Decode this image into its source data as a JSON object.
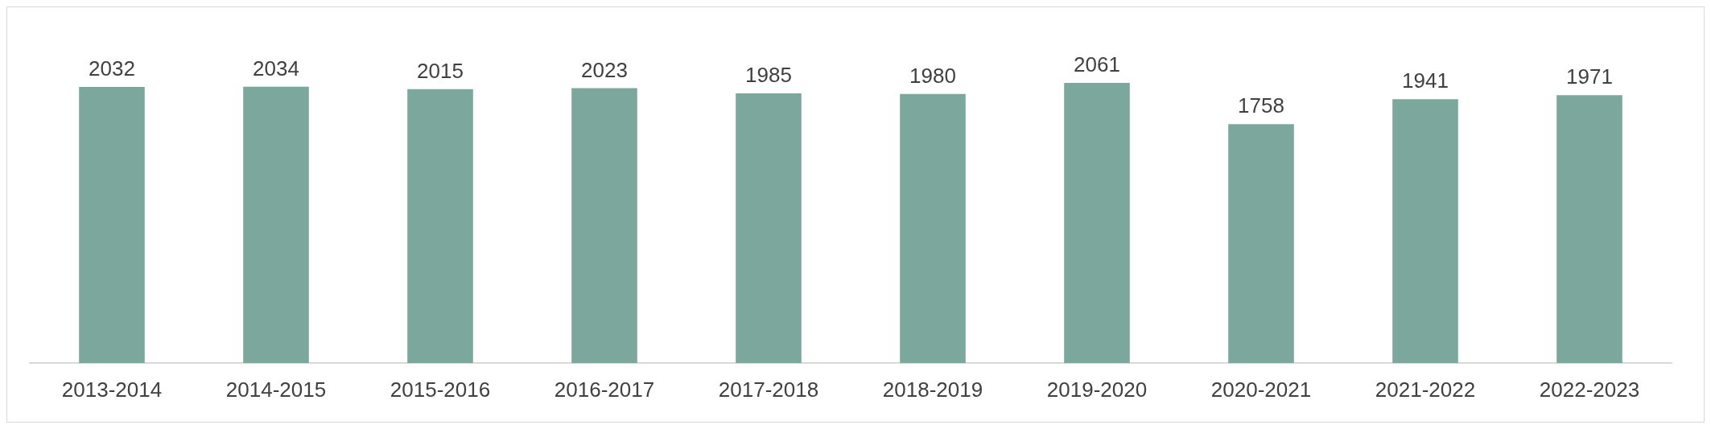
{
  "chart_data": {
    "type": "bar",
    "categories": [
      "2013-2014",
      "2014-2015",
      "2015-2016",
      "2016-2017",
      "2017-2018",
      "2018-2019",
      "2019-2020",
      "2020-2021",
      "2021-2022",
      "2022-2023"
    ],
    "values": [
      2032,
      2034,
      2015,
      2023,
      1985,
      1980,
      2061,
      1758,
      1941,
      1971
    ],
    "color": "#7ba79d",
    "data_labels": true,
    "tick_labels": "x"
  }
}
